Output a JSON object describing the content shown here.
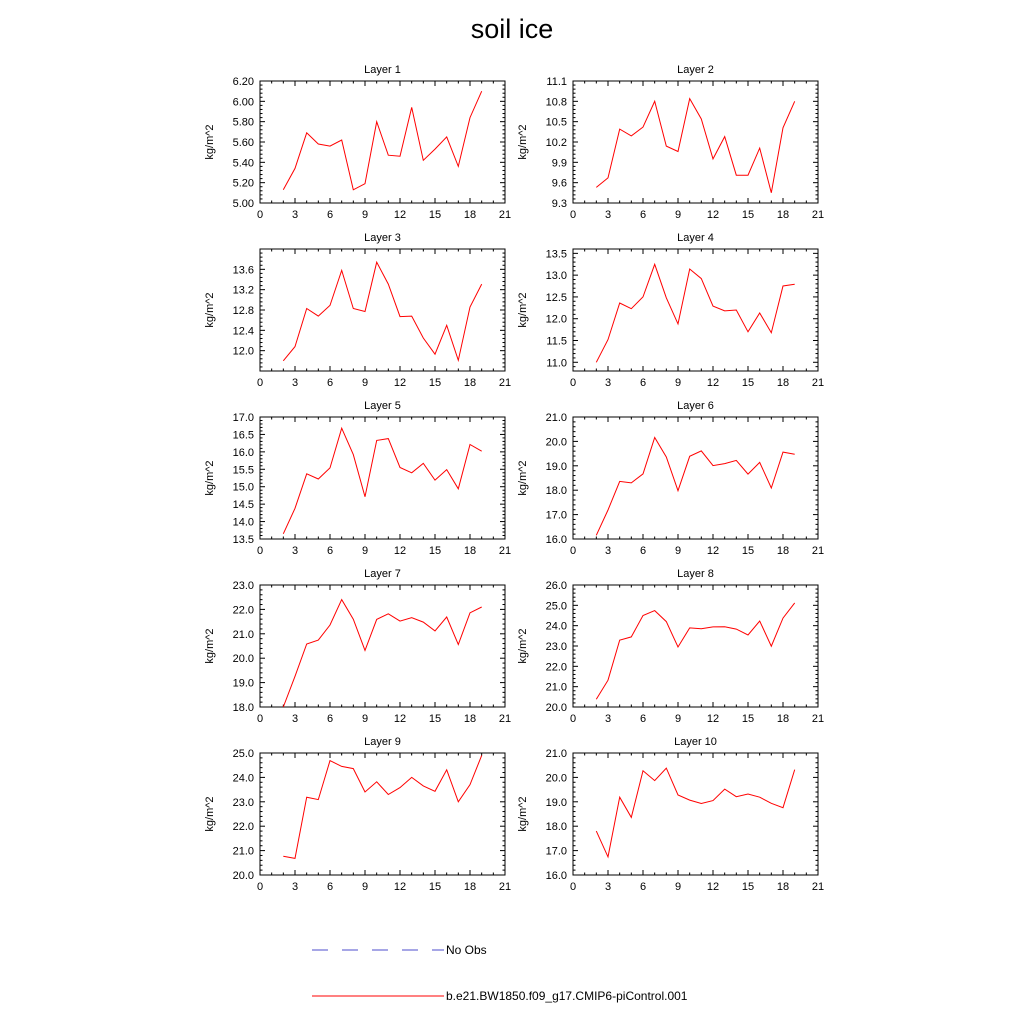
{
  "title": "soil ice",
  "colors": {
    "model": "#ff0000",
    "obs": "#4d4dcc",
    "axis": "#000000"
  },
  "legend": {
    "obs_label": "No Obs",
    "model_label": "b.e21.BW1850.f09_g17.CMIP6-piControl.001"
  },
  "chart_data": [
    {
      "type": "line",
      "title": "Layer 1",
      "ylabel": "kg/m^2",
      "xlim": [
        0,
        21
      ],
      "xticks": [
        0,
        3,
        6,
        9,
        12,
        15,
        18,
        21
      ],
      "ylim": [
        5.0,
        6.2
      ],
      "yticks": [
        "5.00",
        "5.20",
        "5.40",
        "5.60",
        "5.80",
        "6.00",
        "6.20"
      ],
      "series": [
        {
          "name": "b.e21.BW1850.f09_g17.CMIP6-piControl.001",
          "x": [
            2,
            3,
            4,
            5,
            6,
            7,
            8,
            9,
            10,
            11,
            12,
            13,
            14,
            15,
            16,
            17,
            18,
            19
          ],
          "y": [
            5.13,
            5.34,
            5.69,
            5.58,
            5.56,
            5.62,
            5.13,
            5.19,
            5.8,
            5.47,
            5.46,
            5.94,
            5.42,
            5.53,
            5.65,
            5.36,
            5.84,
            6.1
          ]
        }
      ]
    },
    {
      "type": "line",
      "title": "Layer 2",
      "ylabel": "kg/m^2",
      "xlim": [
        0,
        21
      ],
      "xticks": [
        0,
        3,
        6,
        9,
        12,
        15,
        18,
        21
      ],
      "ylim": [
        9.3,
        11.1
      ],
      "yticks": [
        "9.3",
        "9.6",
        "9.9",
        "10.2",
        "10.5",
        "10.8",
        "11.1"
      ],
      "series": [
        {
          "name": "b.e21.BW1850.f09_g17.CMIP6-piControl.001",
          "x": [
            2,
            3,
            4,
            5,
            6,
            7,
            8,
            9,
            10,
            11,
            12,
            13,
            14,
            15,
            16,
            17,
            18,
            19
          ],
          "y": [
            9.53,
            9.67,
            10.39,
            10.29,
            10.42,
            10.8,
            10.14,
            10.06,
            10.84,
            10.54,
            9.95,
            10.28,
            9.71,
            9.71,
            10.11,
            9.45,
            10.41,
            10.8
          ]
        }
      ]
    },
    {
      "type": "line",
      "title": "Layer 3",
      "ylabel": "kg/m^2",
      "xlim": [
        0,
        21
      ],
      "xticks": [
        0,
        3,
        6,
        9,
        12,
        15,
        18,
        21
      ],
      "ylim": [
        11.6,
        14.0
      ],
      "yticks": [
        "12.0",
        "12.4",
        "12.8",
        "13.2",
        "13.6"
      ],
      "series": [
        {
          "name": "b.e21.BW1850.f09_g17.CMIP6-piControl.001",
          "x": [
            2,
            3,
            4,
            5,
            6,
            7,
            8,
            9,
            10,
            11,
            12,
            13,
            14,
            15,
            16,
            17,
            18,
            19
          ],
          "y": [
            11.8,
            12.08,
            12.83,
            12.68,
            12.89,
            13.58,
            12.83,
            12.77,
            13.74,
            13.31,
            12.67,
            12.68,
            12.25,
            11.93,
            12.5,
            11.81,
            12.86,
            13.31
          ]
        }
      ]
    },
    {
      "type": "line",
      "title": "Layer 4",
      "ylabel": "kg/m^2",
      "xlim": [
        0,
        21
      ],
      "xticks": [
        0,
        3,
        6,
        9,
        12,
        15,
        18,
        21
      ],
      "ylim": [
        10.8,
        13.6
      ],
      "yticks": [
        "11.0",
        "11.5",
        "12.0",
        "12.5",
        "13.0",
        "13.5"
      ],
      "series": [
        {
          "name": "b.e21.BW1850.f09_g17.CMIP6-piControl.001",
          "x": [
            2,
            3,
            4,
            5,
            6,
            7,
            8,
            9,
            10,
            11,
            12,
            13,
            14,
            15,
            16,
            17,
            18,
            19
          ],
          "y": [
            11.0,
            11.52,
            12.36,
            12.23,
            12.5,
            13.25,
            12.48,
            11.88,
            13.14,
            12.92,
            12.29,
            12.18,
            12.2,
            11.7,
            12.13,
            11.68,
            12.75,
            12.79
          ]
        }
      ]
    },
    {
      "type": "line",
      "title": "Layer 5",
      "ylabel": "kg/m^2",
      "xlim": [
        0,
        21
      ],
      "xticks": [
        0,
        3,
        6,
        9,
        12,
        15,
        18,
        21
      ],
      "ylim": [
        13.5,
        17.0
      ],
      "yticks": [
        "13.5",
        "14.0",
        "14.5",
        "15.0",
        "15.5",
        "16.0",
        "16.5",
        "17.0"
      ],
      "series": [
        {
          "name": "b.e21.BW1850.f09_g17.CMIP6-piControl.001",
          "x": [
            2,
            3,
            4,
            5,
            6,
            7,
            8,
            9,
            10,
            11,
            12,
            13,
            14,
            15,
            16,
            17,
            18,
            19
          ],
          "y": [
            13.65,
            14.38,
            15.37,
            15.22,
            15.54,
            16.68,
            15.92,
            14.71,
            16.33,
            16.38,
            15.55,
            15.4,
            15.67,
            15.19,
            15.49,
            14.94,
            16.21,
            16.02
          ]
        }
      ]
    },
    {
      "type": "line",
      "title": "Layer 6",
      "ylabel": "kg/m^2",
      "xlim": [
        0,
        21
      ],
      "xticks": [
        0,
        3,
        6,
        9,
        12,
        15,
        18,
        21
      ],
      "ylim": [
        16.0,
        21.0
      ],
      "yticks": [
        "16.0",
        "17.0",
        "18.0",
        "19.0",
        "20.0",
        "21.0"
      ],
      "series": [
        {
          "name": "b.e21.BW1850.f09_g17.CMIP6-piControl.001",
          "x": [
            2,
            3,
            4,
            5,
            6,
            7,
            8,
            9,
            10,
            11,
            12,
            13,
            14,
            15,
            16,
            17,
            18,
            19
          ],
          "y": [
            16.15,
            17.19,
            18.36,
            18.3,
            18.67,
            20.16,
            19.36,
            17.98,
            19.39,
            19.61,
            19.01,
            19.09,
            19.22,
            18.66,
            19.14,
            18.09,
            19.56,
            19.47
          ]
        }
      ]
    },
    {
      "type": "line",
      "title": "Layer 7",
      "ylabel": "kg/m^2",
      "xlim": [
        0,
        21
      ],
      "xticks": [
        0,
        3,
        6,
        9,
        12,
        15,
        18,
        21
      ],
      "ylim": [
        18.0,
        23.0
      ],
      "yticks": [
        "18.0",
        "19.0",
        "20.0",
        "21.0",
        "22.0",
        "23.0"
      ],
      "series": [
        {
          "name": "b.e21.BW1850.f09_g17.CMIP6-piControl.001",
          "x": [
            2,
            3,
            4,
            5,
            6,
            7,
            8,
            9,
            10,
            11,
            12,
            13,
            14,
            15,
            16,
            17,
            18,
            19
          ],
          "y": [
            18.0,
            19.26,
            20.58,
            20.74,
            21.36,
            22.4,
            21.6,
            20.32,
            21.59,
            21.82,
            21.52,
            21.66,
            21.48,
            21.12,
            21.69,
            20.56,
            21.86,
            22.1
          ]
        }
      ]
    },
    {
      "type": "line",
      "title": "Layer 8",
      "ylabel": "kg/m^2",
      "xlim": [
        0,
        21
      ],
      "xticks": [
        0,
        3,
        6,
        9,
        12,
        15,
        18,
        21
      ],
      "ylim": [
        20.0,
        26.0
      ],
      "yticks": [
        "20.0",
        "21.0",
        "22.0",
        "23.0",
        "24.0",
        "25.0",
        "26.0"
      ],
      "series": [
        {
          "name": "b.e21.BW1850.f09_g17.CMIP6-piControl.001",
          "x": [
            2,
            3,
            4,
            5,
            6,
            7,
            8,
            9,
            10,
            11,
            12,
            13,
            14,
            15,
            16,
            17,
            18,
            19
          ],
          "y": [
            20.38,
            21.32,
            23.29,
            23.45,
            24.5,
            24.74,
            24.2,
            22.95,
            23.89,
            23.85,
            23.94,
            23.95,
            23.83,
            23.54,
            24.23,
            22.99,
            24.37,
            25.12
          ]
        }
      ]
    },
    {
      "type": "line",
      "title": "Layer 9",
      "ylabel": "kg/m^2",
      "xlim": [
        0,
        21
      ],
      "xticks": [
        0,
        3,
        6,
        9,
        12,
        15,
        18,
        21
      ],
      "ylim": [
        20.0,
        25.0
      ],
      "yticks": [
        "20.0",
        "21.0",
        "22.0",
        "23.0",
        "24.0",
        "25.0"
      ],
      "series": [
        {
          "name": "b.e21.BW1850.f09_g17.CMIP6-piControl.001",
          "x": [
            2,
            3,
            4,
            5,
            6,
            7,
            8,
            9,
            10,
            11,
            12,
            13,
            14,
            15,
            16,
            17,
            18,
            19
          ],
          "y": [
            20.77,
            20.68,
            23.19,
            23.09,
            24.69,
            24.45,
            24.36,
            23.4,
            23.82,
            23.3,
            23.58,
            24.0,
            23.65,
            23.43,
            24.31,
            23.0,
            23.7,
            24.9
          ]
        }
      ]
    },
    {
      "type": "line",
      "title": "Layer 10",
      "ylabel": "kg/m^2",
      "xlim": [
        0,
        21
      ],
      "xticks": [
        0,
        3,
        6,
        9,
        12,
        15,
        18,
        21
      ],
      "ylim": [
        16.0,
        21.0
      ],
      "yticks": [
        "16.0",
        "17.0",
        "18.0",
        "19.0",
        "20.0",
        "21.0"
      ],
      "series": [
        {
          "name": "b.e21.BW1850.f09_g17.CMIP6-piControl.001",
          "x": [
            2,
            3,
            4,
            5,
            6,
            7,
            8,
            9,
            10,
            11,
            12,
            13,
            14,
            15,
            16,
            17,
            18,
            19
          ],
          "y": [
            17.8,
            16.74,
            19.19,
            18.36,
            20.27,
            19.87,
            20.38,
            19.28,
            19.07,
            18.93,
            19.05,
            19.52,
            19.21,
            19.32,
            19.19,
            18.94,
            18.76,
            20.32
          ]
        }
      ]
    }
  ]
}
